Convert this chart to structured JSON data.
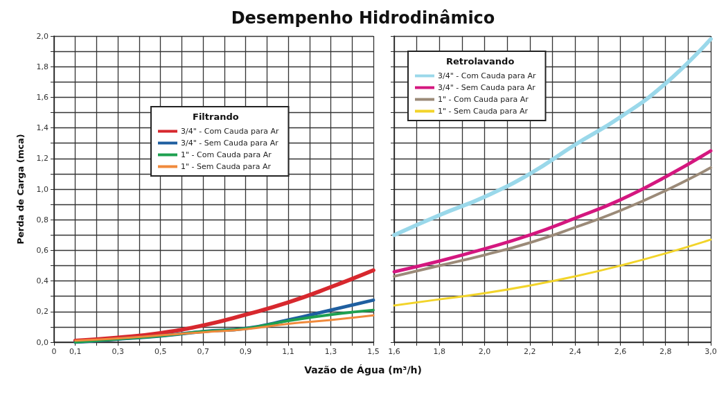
{
  "chart_data": [
    {
      "type": "line",
      "title": "Desempenho Hidrodinâmico",
      "xlabel": "Vazão de Água (m³/h)",
      "ylabel": "Perda de Carga (mca)",
      "legend_title": "Filtrando",
      "legend": "top",
      "grid": true,
      "marker": "none",
      "line_style": "solid",
      "x": [
        0.1,
        0.3,
        0.5,
        0.7,
        0.9,
        1.1,
        1.3,
        1.5
      ],
      "xlim": [
        0,
        1.5
      ],
      "xticks": [
        0,
        {
          "value": 0.1,
          "label": "0,1"
        },
        {
          "value": 0.2,
          "label": null
        },
        {
          "value": 0.3,
          "label": "0,3"
        },
        {
          "value": 0.4,
          "label": null
        },
        {
          "value": 0.5,
          "label": "0,5"
        },
        {
          "value": 0.6,
          "label": null
        },
        {
          "value": 0.7,
          "label": "0,7"
        },
        {
          "value": 0.8,
          "label": null
        },
        {
          "value": 0.9,
          "label": "0,9"
        },
        {
          "value": 1.0,
          "label": null
        },
        {
          "value": 1.1,
          "label": "1,1"
        },
        {
          "value": 1.2,
          "label": null
        },
        {
          "value": 1.3,
          "label": "1,3"
        },
        {
          "value": 1.4,
          "label": null
        },
        {
          "value": 1.5,
          "label": "1,5"
        }
      ],
      "ylim": [
        0,
        2
      ],
      "yticks": [
        {
          "value": 0,
          "label": "0,0"
        },
        {
          "value": 0.1,
          "label": null
        },
        {
          "value": 0.2,
          "label": "0,2"
        },
        {
          "value": 0.3,
          "label": null
        },
        {
          "value": 0.4,
          "label": "0,4"
        },
        {
          "value": 0.5,
          "label": null
        },
        {
          "value": 0.6,
          "label": "0,6"
        },
        {
          "value": 0.7,
          "label": null
        },
        {
          "value": 0.8,
          "label": "0,8"
        },
        {
          "value": 0.9,
          "label": null
        },
        {
          "value": 1.0,
          "label": "1,0"
        },
        {
          "value": 1.1,
          "label": null
        },
        {
          "value": 1.2,
          "label": "1,2"
        },
        {
          "value": 1.3,
          "label": null
        },
        {
          "value": 1.4,
          "label": "1,4"
        },
        {
          "value": 1.5,
          "label": null
        },
        {
          "value": 1.6,
          "label": "1,6"
        },
        {
          "value": 1.7,
          "label": null
        },
        {
          "value": 1.8,
          "label": "1,8"
        },
        {
          "value": 1.9,
          "label": null
        },
        {
          "value": 2.0,
          "label": "2,0"
        }
      ],
      "series": [
        {
          "name": "3/4\" - Com Cauda para Ar",
          "color": "#d7282e",
          "values": [
            0.01,
            0.03,
            0.06,
            0.11,
            0.18,
            0.26,
            0.36,
            0.47
          ]
        },
        {
          "name": "3/4\" - Sem Cauda para Ar",
          "color": "#1f5fa0",
          "values": [
            0.0,
            0.02,
            0.04,
            0.07,
            0.09,
            0.145,
            0.21,
            0.275
          ]
        },
        {
          "name": "1\" - Com Cauda para Ar",
          "color": "#1ea050",
          "values": [
            0.0,
            0.02,
            0.04,
            0.07,
            0.09,
            0.14,
            0.18,
            0.21
          ]
        },
        {
          "name": "1\" - Sem Cauda para Ar",
          "color": "#f08a3c",
          "values": [
            0.01,
            0.025,
            0.045,
            0.065,
            0.085,
            0.12,
            0.145,
            0.175
          ]
        }
      ]
    },
    {
      "type": "line",
      "legend_title": "Retrolavando",
      "legend": "top left",
      "grid": true,
      "marker": "none",
      "line_style": "solid",
      "tick_labels": "x",
      "x": [
        1.6,
        1.8,
        2.0,
        2.2,
        2.4,
        2.6,
        2.8,
        3.0
      ],
      "xlim": [
        1.6,
        3.0
      ],
      "xticks": [
        {
          "value": 1.6,
          "label": "1,6"
        },
        {
          "value": 1.7,
          "label": null
        },
        {
          "value": 1.8,
          "label": "1,8"
        },
        {
          "value": 1.9,
          "label": null
        },
        {
          "value": 2.0,
          "label": "2,0"
        },
        {
          "value": 2.1,
          "label": null
        },
        {
          "value": 2.2,
          "label": "2,2"
        },
        {
          "value": 2.3,
          "label": null
        },
        {
          "value": 2.4,
          "label": "2,4"
        },
        {
          "value": 2.5,
          "label": null
        },
        {
          "value": 2.6,
          "label": "2,6"
        },
        {
          "value": 2.7,
          "label": null
        },
        {
          "value": 2.8,
          "label": "2,8"
        },
        {
          "value": 2.9,
          "label": null
        },
        {
          "value": 3.0,
          "label": "3,0"
        }
      ],
      "ylim": [
        0,
        2
      ],
      "yticks": [
        0,
        0.1,
        0.2,
        0.3,
        0.4,
        0.5,
        0.6,
        0.7,
        0.8,
        0.9,
        1.0,
        1.1,
        1.2,
        1.3,
        1.4,
        1.5,
        1.6,
        1.7,
        1.8,
        1.9,
        2.0
      ],
      "series": [
        {
          "name": "3/4\" - Com Cauda para Ar",
          "color": "#9ad8ea",
          "values": [
            0.7,
            0.83,
            0.95,
            1.1,
            1.29,
            1.47,
            1.69,
            1.98
          ]
        },
        {
          "name": "3/4\" - Sem Cauda para Ar",
          "color": "#d4177f",
          "values": [
            0.46,
            0.53,
            0.61,
            0.7,
            0.81,
            0.93,
            1.08,
            1.25
          ]
        },
        {
          "name": "1\" - Com Cauda para Ar",
          "color": "#9b8a78",
          "values": [
            0.43,
            0.5,
            0.57,
            0.65,
            0.75,
            0.86,
            0.99,
            1.14
          ]
        },
        {
          "name": "1\" - Sem Cauda para Ar",
          "color": "#f2d42a",
          "values": [
            0.24,
            0.28,
            0.32,
            0.37,
            0.43,
            0.5,
            0.58,
            0.67
          ]
        }
      ]
    }
  ]
}
